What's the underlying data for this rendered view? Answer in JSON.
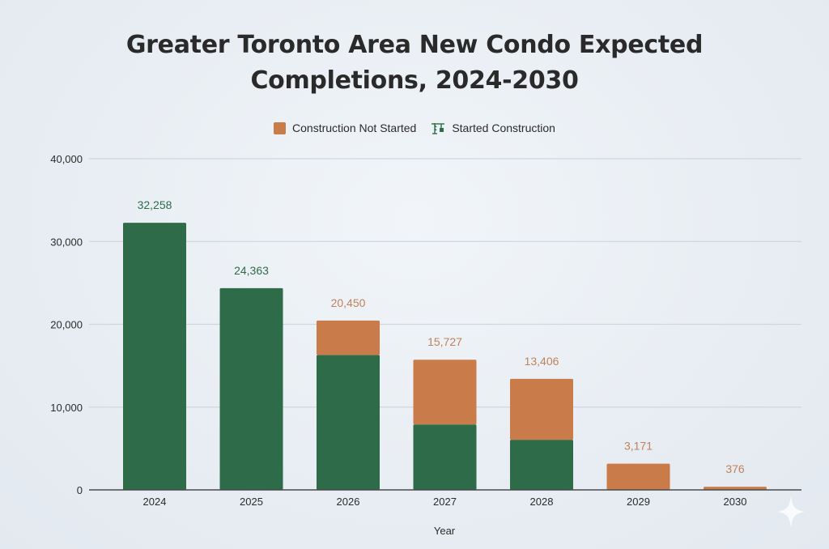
{
  "chart_data": {
    "type": "bar",
    "stacked": true,
    "title": "Greater Toronto Area New Condo Expected Completions, 2024-2030",
    "title_lines": [
      "Greater Toronto Area New Condo Expected",
      "Completions, 2024-2030"
    ],
    "xlabel": "Year",
    "ylabel": "",
    "categories": [
      "2024",
      "2025",
      "2026",
      "2027",
      "2028",
      "2029",
      "2030"
    ],
    "series": [
      {
        "name": "Started Construction",
        "color": "#2e6b48",
        "values": [
          32258,
          24363,
          16300,
          7900,
          6050,
          0,
          0
        ]
      },
      {
        "name": "Construction Not Started",
        "color": "#c97c4a",
        "values": [
          0,
          0,
          4150,
          7827,
          7356,
          3171,
          376
        ]
      }
    ],
    "totals": [
      32258,
      24363,
      20450,
      15727,
      13406,
      3171,
      376
    ],
    "total_labels": [
      "32,258",
      "24,363",
      "20,450",
      "15,727",
      "13,406",
      "3,171",
      "376"
    ],
    "total_label_colors": [
      "#2e6b48",
      "#2e6b48",
      "#c97c4a",
      "#c97c4a",
      "#c97c4a",
      "#c97c4a",
      "#c97c4a"
    ],
    "ylim": [
      0,
      40000
    ],
    "yticks": [
      0,
      10000,
      20000,
      30000,
      40000
    ],
    "ytick_labels": [
      "0",
      "10,000",
      "20,000",
      "30,000",
      "40,000"
    ],
    "grid": true,
    "legend_position": "top-center",
    "legend": [
      {
        "label": "Construction Not Started",
        "icon": "orange-square"
      },
      {
        "label": "Started Construction",
        "icon": "crane-icon"
      }
    ]
  },
  "colors": {
    "started": "#2e6b48",
    "not_started": "#c97c4a",
    "label_not_started": "#c0825a",
    "grid": "#cfd6de",
    "axis": "#4a4a4a"
  }
}
